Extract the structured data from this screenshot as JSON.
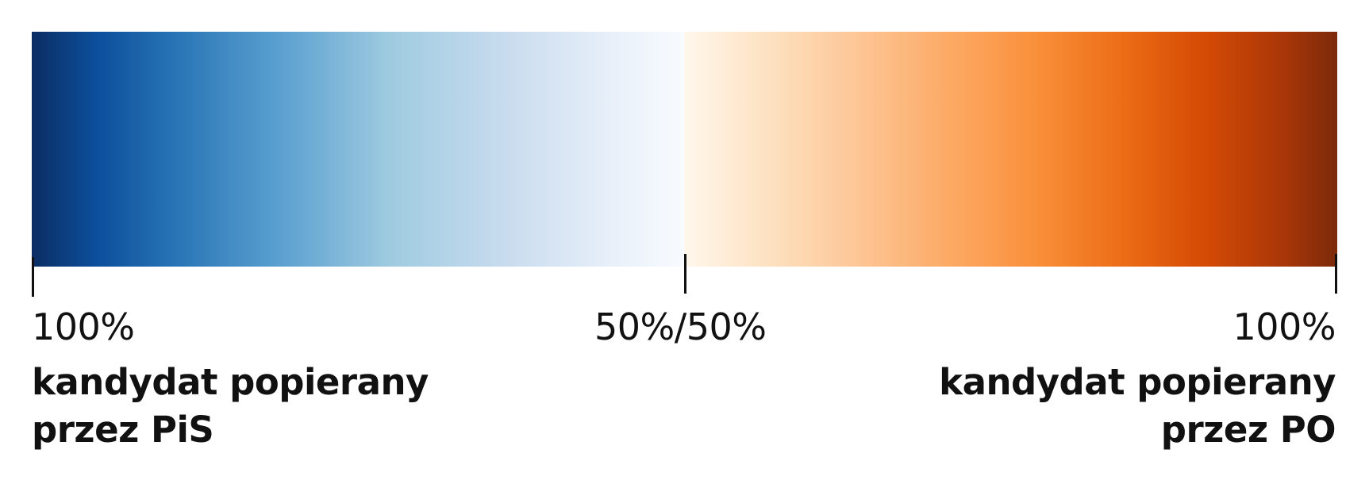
{
  "scale": {
    "colors": {
      "pis_dark": "#0b2d63",
      "neutral_blue": "#f8fbff",
      "neutral_orange": "#fff7ec",
      "po_dark": "#7b2a0a"
    },
    "labels": {
      "left": "100%",
      "middle": "50%/50%",
      "right": "100%"
    },
    "left_party": {
      "line1": "kandydat popierany",
      "line2": "przez PiS"
    },
    "right_party": {
      "line1": "kandydat popierany",
      "line2": "przez PO"
    }
  }
}
